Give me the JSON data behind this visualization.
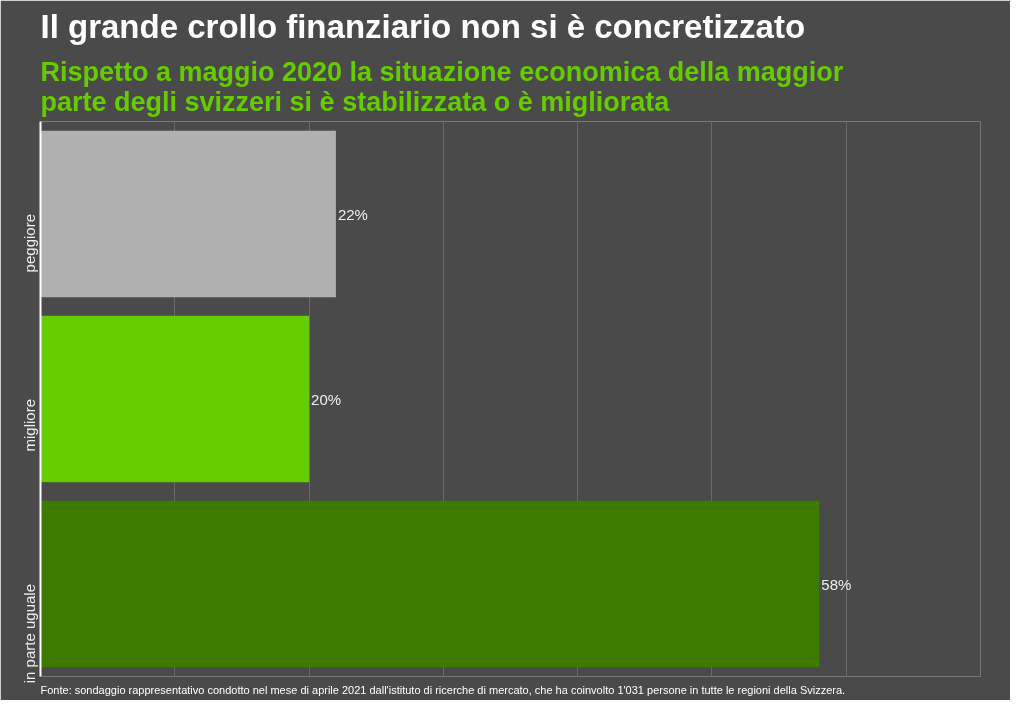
{
  "chart_data": {
    "type": "bar",
    "orientation": "horizontal",
    "title": "Il grande crollo finanziario non si è concretizzato",
    "subtitle": "Rispetto a maggio 2020 la situazione economica della maggior parte degli svizzeri si è stabilizzata o è migliorata",
    "categories": [
      "peggiore",
      "migliore",
      "in parte uguale"
    ],
    "values": [
      22,
      20,
      58
    ],
    "colors": [
      "#b0b0b0",
      "#66cc00",
      "#3d7a00"
    ],
    "value_labels": [
      "22%",
      "20%",
      "58%"
    ],
    "xlim": [
      0,
      70
    ],
    "xticks": [
      {
        "value": 10,
        "label": null
      },
      {
        "value": 20,
        "label": null
      },
      {
        "value": 30,
        "label": null
      },
      {
        "value": 40,
        "label": null
      },
      {
        "value": 50,
        "label": null
      },
      {
        "value": 60,
        "label": null
      },
      {
        "value": 70,
        "label": null
      }
    ],
    "grid": "x",
    "tick_labels": "y",
    "annotations": [
      "Fonte: sondaggio rappresentativo condotto nel mese di aprile 2021 dall'istituto di ricerche di mercato, che ha coinvolto 1'031 persone in tutte le regioni della Svizzera."
    ]
  }
}
